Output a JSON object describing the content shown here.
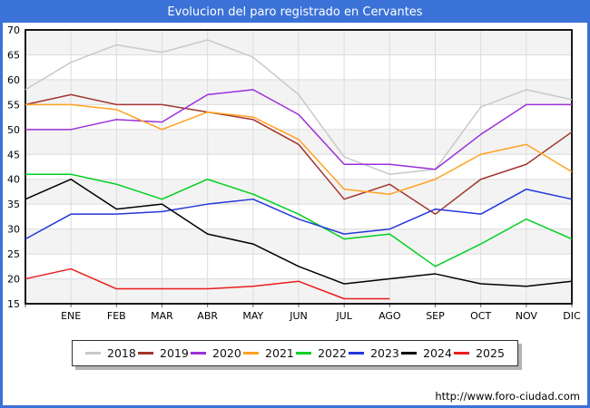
{
  "header": {
    "title": "Evolucion del paro registrado en Cervantes"
  },
  "colors": {
    "header_bg": "#3b72d8",
    "plot_band": "#f3f3f3",
    "gridline": "#dcdcdc",
    "plot_border": "#000000",
    "tick": "#666666"
  },
  "footer": {
    "url": "http://www.foro-ciudad.com"
  },
  "chart_data": {
    "type": "line",
    "title": "Evolucion del paro registrado en Cervantes",
    "xlabel": "",
    "ylabel": "",
    "ylim": [
      15,
      70
    ],
    "ytick_step": 5,
    "grid": true,
    "legend_position": "bottom",
    "x_labels": [
      "ENE",
      "FEB",
      "MAR",
      "ABR",
      "MAY",
      "JUN",
      "JUL",
      "AGO",
      "SEP",
      "OCT",
      "NOV",
      "DIC"
    ],
    "first_point_note": "each series begins with an unlabeled point on the left axis before ENE",
    "series": [
      {
        "name": "2018",
        "color": "#c9c9c9",
        "values": [
          58,
          63.5,
          67,
          65.5,
          68,
          64.5,
          57,
          44.5,
          41,
          42,
          54.5,
          58,
          56
        ]
      },
      {
        "name": "2019",
        "color": "#a23530",
        "values": [
          55,
          57,
          55,
          55,
          53.5,
          52,
          47,
          36,
          39,
          33,
          40,
          43,
          49.5
        ]
      },
      {
        "name": "2020",
        "color": "#9b30d9",
        "values": [
          50,
          50,
          52,
          51.5,
          57,
          58,
          53,
          43,
          43,
          42,
          49,
          55,
          55
        ]
      },
      {
        "name": "2021",
        "color": "#ffa21f",
        "values": [
          55,
          55,
          54,
          50,
          53.5,
          52.5,
          48,
          38,
          37,
          40,
          45,
          47,
          41.5
        ]
      },
      {
        "name": "2022",
        "color": "#00d01f",
        "values": [
          41,
          41,
          39,
          36,
          40,
          37,
          33,
          28,
          29,
          22.5,
          27,
          32,
          28
        ]
      },
      {
        "name": "2023",
        "color": "#2336dc",
        "values": [
          28,
          33,
          33,
          33.5,
          35,
          36,
          32,
          29,
          30,
          34,
          33,
          38,
          36
        ]
      },
      {
        "name": "2024",
        "color": "#000000",
        "values": [
          36,
          40,
          34,
          35,
          29,
          27,
          22.5,
          19,
          20,
          21,
          19,
          18.5,
          19.5
        ]
      },
      {
        "name": "2025",
        "color": "#ec1c1c",
        "values": [
          20,
          22,
          18,
          18,
          18,
          18.5,
          19.5,
          16,
          16
        ]
      }
    ]
  }
}
